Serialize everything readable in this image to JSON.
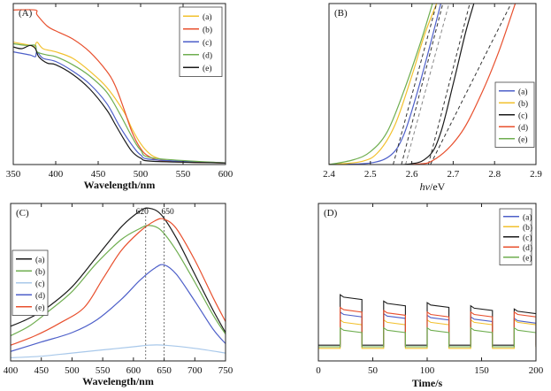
{
  "figure": {
    "panels": [
      "A",
      "B",
      "C",
      "D"
    ]
  },
  "chart_data": [
    {
      "id": "A",
      "type": "line",
      "label": "(A)",
      "xlabel": "Wavelength/nm",
      "ylabel": "",
      "xlim": [
        350,
        600
      ],
      "ylim": [
        0,
        1
      ],
      "xticks": [
        350,
        400,
        450,
        500,
        550,
        600
      ],
      "legend": "top-right",
      "series": [
        {
          "name": "(a)",
          "color": "#f2c12e",
          "points": [
            [
              350,
              0.76
            ],
            [
              360,
              0.75
            ],
            [
              370,
              0.74
            ],
            [
              375,
              0.73
            ],
            [
              378,
              0.76
            ],
            [
              385,
              0.72
            ],
            [
              400,
              0.7
            ],
            [
              420,
              0.66
            ],
            [
              440,
              0.58
            ],
            [
              460,
              0.48
            ],
            [
              480,
              0.33
            ],
            [
              490,
              0.22
            ],
            [
              500,
              0.13
            ],
            [
              510,
              0.07
            ],
            [
              520,
              0.04
            ],
            [
              540,
              0.02
            ],
            [
              600,
              0.01
            ]
          ]
        },
        {
          "name": "(b)",
          "color": "#e8502e",
          "points": [
            [
              350,
              0.96
            ],
            [
              376,
              0.96
            ],
            [
              378,
              0.93
            ],
            [
              390,
              0.86
            ],
            [
              400,
              0.83
            ],
            [
              420,
              0.78
            ],
            [
              440,
              0.7
            ],
            [
              460,
              0.58
            ],
            [
              470,
              0.49
            ],
            [
              480,
              0.35
            ],
            [
              490,
              0.2
            ],
            [
              500,
              0.1
            ],
            [
              510,
              0.05
            ],
            [
              530,
              0.02
            ],
            [
              600,
              0.01
            ]
          ]
        },
        {
          "name": "(c)",
          "color": "#4d5fc9",
          "points": [
            [
              350,
              0.7
            ],
            [
              360,
              0.69
            ],
            [
              370,
              0.68
            ],
            [
              376,
              0.67
            ],
            [
              378,
              0.7
            ],
            [
              385,
              0.66
            ],
            [
              400,
              0.64
            ],
            [
              420,
              0.58
            ],
            [
              440,
              0.5
            ],
            [
              460,
              0.38
            ],
            [
              475,
              0.24
            ],
            [
              490,
              0.12
            ],
            [
              500,
              0.06
            ],
            [
              515,
              0.03
            ],
            [
              600,
              0.01
            ]
          ]
        },
        {
          "name": "(d)",
          "color": "#6fae50",
          "points": [
            [
              350,
              0.75
            ],
            [
              365,
              0.74
            ],
            [
              376,
              0.74
            ],
            [
              378,
              0.7
            ],
            [
              390,
              0.68
            ],
            [
              400,
              0.67
            ],
            [
              420,
              0.62
            ],
            [
              440,
              0.55
            ],
            [
              460,
              0.45
            ],
            [
              475,
              0.32
            ],
            [
              490,
              0.17
            ],
            [
              500,
              0.09
            ],
            [
              515,
              0.04
            ],
            [
              600,
              0.01
            ]
          ]
        },
        {
          "name": "(e)",
          "color": "#1a1a1a",
          "points": [
            [
              350,
              0.73
            ],
            [
              360,
              0.72
            ],
            [
              370,
              0.74
            ],
            [
              376,
              0.72
            ],
            [
              380,
              0.67
            ],
            [
              390,
              0.63
            ],
            [
              400,
              0.62
            ],
            [
              420,
              0.56
            ],
            [
              440,
              0.47
            ],
            [
              460,
              0.34
            ],
            [
              470,
              0.25
            ],
            [
              480,
              0.16
            ],
            [
              490,
              0.08
            ],
            [
              500,
              0.04
            ],
            [
              515,
              0.02
            ],
            [
              600,
              0.01
            ]
          ]
        }
      ]
    },
    {
      "id": "B",
      "type": "line",
      "label": "(B)",
      "xlabel": "hν/eV",
      "xlabel_italic": "hν",
      "xlabel_rest": "/eV",
      "ylabel": "",
      "xlim": [
        2.4,
        2.9
      ],
      "ylim": [
        0,
        1
      ],
      "xticks": [
        2.4,
        2.5,
        2.6,
        2.7,
        2.8,
        2.9
      ],
      "tick_labels": [
        "2.4",
        "2.5",
        "2.6",
        "2.7",
        "2.8",
        "2.9"
      ],
      "legend": "right",
      "series": [
        {
          "name": "(a)",
          "color": "#4d5fc9",
          "points": [
            [
              2.4,
              0.0
            ],
            [
              2.5,
              0.01
            ],
            [
              2.55,
              0.06
            ],
            [
              2.58,
              0.18
            ],
            [
              2.61,
              0.42
            ],
            [
              2.64,
              0.7
            ],
            [
              2.67,
              1.0
            ]
          ],
          "fit": [
            [
              2.575,
              0.0
            ],
            [
              2.675,
              1.0
            ]
          ]
        },
        {
          "name": "(b)",
          "color": "#f2c12e",
          "points": [
            [
              2.4,
              0.0
            ],
            [
              2.48,
              0.02
            ],
            [
              2.52,
              0.08
            ],
            [
              2.56,
              0.25
            ],
            [
              2.6,
              0.55
            ],
            [
              2.63,
              0.8
            ],
            [
              2.66,
              1.0
            ]
          ],
          "fit": [
            [
              2.585,
              0.0
            ],
            [
              2.69,
              1.0
            ]
          ]
        },
        {
          "name": "(c)",
          "color": "#1a1a1a",
          "points": [
            [
              2.4,
              0.0
            ],
            [
              2.58,
              0.0
            ],
            [
              2.64,
              0.05
            ],
            [
              2.67,
              0.2
            ],
            [
              2.7,
              0.5
            ],
            [
              2.73,
              0.82
            ],
            [
              2.75,
              1.0
            ]
          ],
          "fit": [
            [
              2.64,
              0.0
            ],
            [
              2.74,
              1.0
            ]
          ]
        },
        {
          "name": "(d)",
          "color": "#e8502e",
          "points": [
            [
              2.4,
              0.0
            ],
            [
              2.6,
              0.0
            ],
            [
              2.66,
              0.04
            ],
            [
              2.72,
              0.2
            ],
            [
              2.77,
              0.45
            ],
            [
              2.81,
              0.7
            ],
            [
              2.85,
              1.0
            ]
          ],
          "fit": [
            [
              2.645,
              0.0
            ],
            [
              2.84,
              1.0
            ]
          ]
        },
        {
          "name": "(e)",
          "color": "#6fae50",
          "points": [
            [
              2.4,
              0.0
            ],
            [
              2.46,
              0.03
            ],
            [
              2.5,
              0.08
            ],
            [
              2.54,
              0.2
            ],
            [
              2.58,
              0.45
            ],
            [
              2.62,
              0.75
            ],
            [
              2.65,
              1.0
            ]
          ],
          "fit": [
            [
              2.555,
              0.0
            ],
            [
              2.66,
              1.0
            ]
          ]
        }
      ]
    },
    {
      "id": "C",
      "type": "line",
      "label": "(C)",
      "xlabel": "Wavelength/nm",
      "ylabel": "",
      "xlim": [
        400,
        750
      ],
      "ylim": [
        0,
        1
      ],
      "xticks": [
        400,
        450,
        500,
        550,
        600,
        650,
        700,
        750
      ],
      "legend": "left",
      "annotations": [
        {
          "text": "620",
          "x": 620
        },
        {
          "text": "650",
          "x": 650
        }
      ],
      "series": [
        {
          "name": "(a)",
          "color": "#1a1a1a",
          "points": [
            [
              400,
              0.22
            ],
            [
              430,
              0.27
            ],
            [
              460,
              0.34
            ],
            [
              500,
              0.47
            ],
            [
              540,
              0.66
            ],
            [
              580,
              0.85
            ],
            [
              610,
              0.95
            ],
            [
              625,
              0.97
            ],
            [
              645,
              0.93
            ],
            [
              670,
              0.78
            ],
            [
              700,
              0.55
            ],
            [
              730,
              0.32
            ],
            [
              750,
              0.18
            ]
          ]
        },
        {
          "name": "(b)",
          "color": "#6fae50",
          "points": [
            [
              400,
              0.16
            ],
            [
              430,
              0.22
            ],
            [
              460,
              0.31
            ],
            [
              500,
              0.44
            ],
            [
              540,
              0.62
            ],
            [
              580,
              0.77
            ],
            [
              610,
              0.84
            ],
            [
              625,
              0.86
            ],
            [
              645,
              0.83
            ],
            [
              670,
              0.7
            ],
            [
              700,
              0.5
            ],
            [
              730,
              0.29
            ],
            [
              750,
              0.17
            ]
          ]
        },
        {
          "name": "(c)",
          "color": "#a8c8ea",
          "points": [
            [
              400,
              0.02
            ],
            [
              450,
              0.03
            ],
            [
              500,
              0.05
            ],
            [
              550,
              0.07
            ],
            [
              600,
              0.09
            ],
            [
              625,
              0.1
            ],
            [
              650,
              0.1
            ],
            [
              700,
              0.08
            ],
            [
              750,
              0.05
            ]
          ]
        },
        {
          "name": "(d)",
          "color": "#4d5fc9",
          "points": [
            [
              400,
              0.06
            ],
            [
              450,
              0.12
            ],
            [
              500,
              0.18
            ],
            [
              540,
              0.26
            ],
            [
              580,
              0.39
            ],
            [
              610,
              0.51
            ],
            [
              635,
              0.59
            ],
            [
              650,
              0.61
            ],
            [
              670,
              0.55
            ],
            [
              700,
              0.38
            ],
            [
              730,
              0.2
            ],
            [
              750,
              0.11
            ]
          ]
        },
        {
          "name": "(e)",
          "color": "#e8502e",
          "points": [
            [
              400,
              0.1
            ],
            [
              440,
              0.16
            ],
            [
              480,
              0.24
            ],
            [
              520,
              0.34
            ],
            [
              550,
              0.52
            ],
            [
              580,
              0.7
            ],
            [
              610,
              0.82
            ],
            [
              635,
              0.89
            ],
            [
              650,
              0.9
            ],
            [
              670,
              0.84
            ],
            [
              700,
              0.64
            ],
            [
              730,
              0.4
            ],
            [
              750,
              0.25
            ]
          ]
        }
      ]
    },
    {
      "id": "D",
      "type": "line",
      "label": "(D)",
      "xlabel": "Time/s",
      "ylabel": "",
      "xlim": [
        0,
        200
      ],
      "ylim": [
        0,
        1
      ],
      "xticks": [
        0,
        50,
        100,
        150,
        200
      ],
      "legend": "top-right",
      "on_intervals": [
        [
          20,
          40
        ],
        [
          60,
          80
        ],
        [
          100,
          120
        ],
        [
          140,
          160
        ],
        [
          180,
          200
        ]
      ],
      "series": [
        {
          "name": "(a)",
          "color": "#4d5fc9",
          "base": 0.09,
          "on": [
            0.31,
            0.3,
            0.29,
            0.28,
            0.27
          ]
        },
        {
          "name": "(b)",
          "color": "#f2c12e",
          "base": 0.08,
          "on": [
            0.26,
            0.26,
            0.26,
            0.26,
            0.26
          ]
        },
        {
          "name": "(c)",
          "color": "#1a1a1a",
          "base": 0.1,
          "on": [
            0.42,
            0.38,
            0.37,
            0.35,
            0.33
          ]
        },
        {
          "name": "(d)",
          "color": "#e8502e",
          "base": 0.09,
          "on": [
            0.34,
            0.32,
            0.31,
            0.31,
            0.31
          ]
        },
        {
          "name": "(e)",
          "color": "#6fae50",
          "base": 0.09,
          "on": [
            0.21,
            0.21,
            0.21,
            0.21,
            0.21
          ]
        }
      ]
    }
  ]
}
